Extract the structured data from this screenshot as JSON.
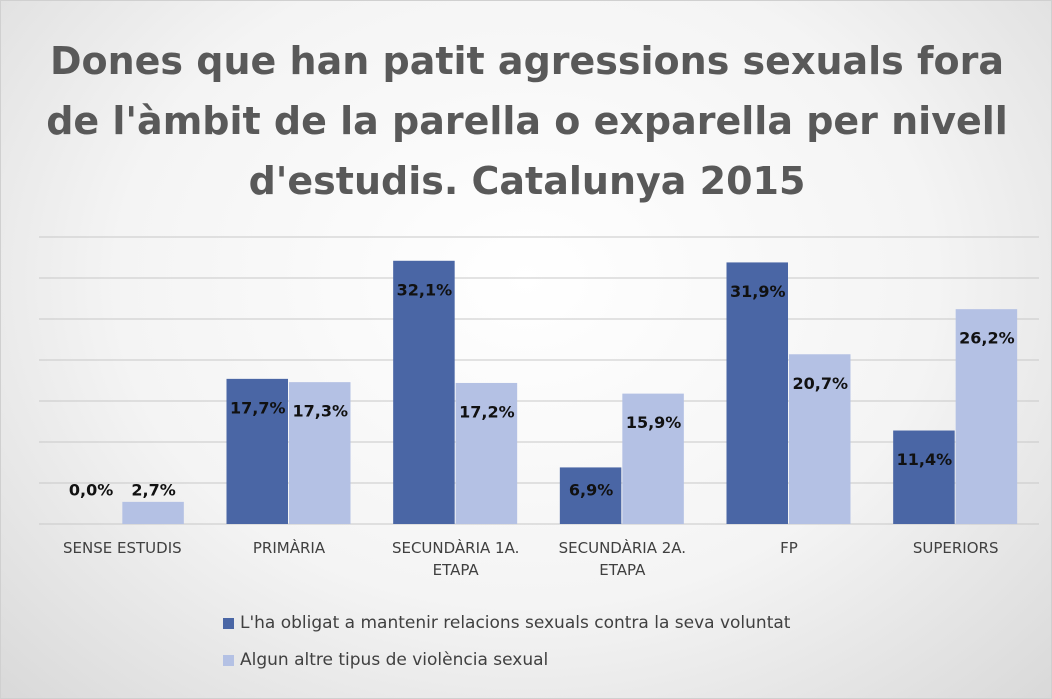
{
  "chart_data": {
    "type": "bar",
    "title": "Dones que han patit agressions sexuals fora de l'àmbit de la parella o exparella per nivell d'estudis. Catalunya 2015",
    "categories": [
      "SENSE ESTUDIS",
      "PRIMÀRIA",
      "SECUNDÀRIA 1A. ETAPA",
      "SECUNDÀRIA 2A. ETAPA",
      "FP",
      "SUPERIORS"
    ],
    "series": [
      {
        "name": "L'ha obligat a mantenir relacions sexuals contra la seva voluntat",
        "color": "#4a66a5",
        "values": [
          0.0,
          17.7,
          32.1,
          6.9,
          31.9,
          11.4
        ],
        "value_labels": [
          "0,0%",
          "17,7%",
          "32,1%",
          "6,9%",
          "31,9%",
          "11,4%"
        ]
      },
      {
        "name": "Algun altre tipus de violència sexual",
        "color": "#b4c1e4",
        "values": [
          2.7,
          17.3,
          17.2,
          15.9,
          20.7,
          26.2
        ],
        "value_labels": [
          "2,7%",
          "17,3%",
          "17,2%",
          "15,9%",
          "20,7%",
          "26,2%"
        ]
      }
    ],
    "ylim": [
      0,
      35
    ],
    "yticks": [
      0,
      5,
      10,
      15,
      20,
      25,
      30,
      35
    ],
    "grid": true,
    "legend": "bottom"
  }
}
